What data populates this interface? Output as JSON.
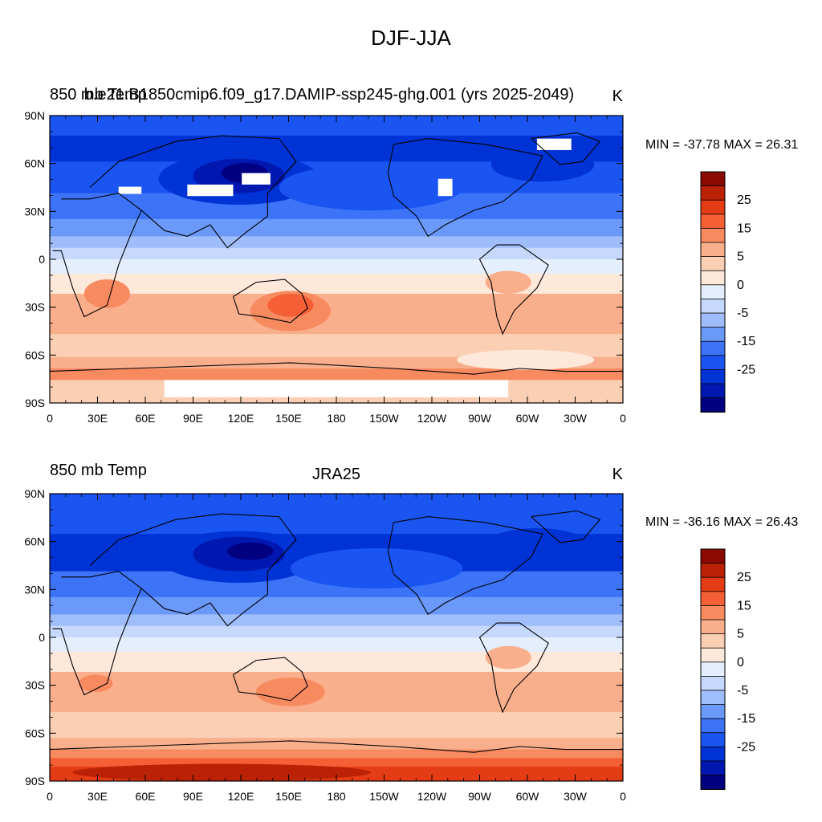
{
  "figure": {
    "title": "DJF-JJA"
  },
  "panels": [
    {
      "left_title": "850 mb Temp",
      "center_title": "b.e21.B1850cmip6.f09_g17.DAMIP-ssp245-ghg.001 (yrs 2025-2049)",
      "units": "K",
      "stats": "MIN = -37.78 MAX =  26.31",
      "missing_data": true
    },
    {
      "left_title": "850 mb Temp",
      "center_title": "JRA25",
      "units": "K",
      "stats": "MIN = -36.16 MAX =  26.43",
      "missing_data": false
    }
  ],
  "map": {
    "projection": "cylindrical equidistant",
    "lon_labels": [
      "0",
      "30E",
      "60E",
      "90E",
      "120E",
      "150E",
      "180",
      "150W",
      "120W",
      "90W",
      "60W",
      "30W",
      "0"
    ],
    "lat_labels": [
      "90N",
      "60N",
      "30N",
      "0",
      "30S",
      "60S",
      "90S"
    ]
  },
  "colorbar": {
    "labels": [
      "25",
      "15",
      "5",
      "0",
      "-5",
      "-15",
      "-25"
    ],
    "colors": [
      "#000080",
      "#0018b0",
      "#0033d6",
      "#1a55f2",
      "#3d73f7",
      "#6a99fa",
      "#9fbcfb",
      "#c6d9fd",
      "#e4eefd",
      "#fde8da",
      "#fbcfb4",
      "#f9ae8c",
      "#f88a60",
      "#f45f35",
      "#e43c14",
      "#bb2105",
      "#8a0a00"
    ]
  },
  "legend_colors": {
    "missing": "#ffffff",
    "coastline": "#000000"
  }
}
